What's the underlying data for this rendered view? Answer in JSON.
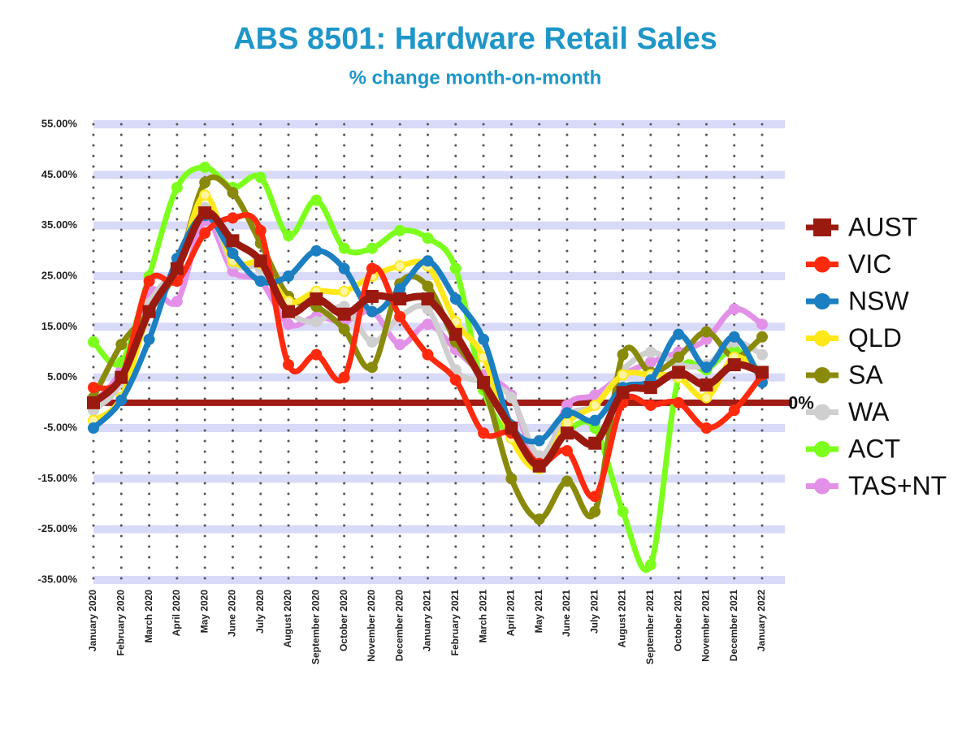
{
  "chart_data": {
    "type": "line",
    "title": "ABS 8501: Hardware Retail Sales",
    "subtitle": "% change month-on-month",
    "categories": [
      "January 2020",
      "February 2020",
      "March 2020",
      "April 2020",
      "May 2020",
      "June 2020",
      "July 2020",
      "August 2020",
      "September 2020",
      "October 2020",
      "November 2020",
      "December 2020",
      "January 2021",
      "February 2021",
      "March 2021",
      "April 2021",
      "May 2021",
      "June 2021",
      "July 2021",
      "August 2021",
      "September 2021",
      "October 2021",
      "November 2021",
      "December 2021",
      "January 2022"
    ],
    "ylim": [
      -35,
      55
    ],
    "yticks": [
      {
        "value": 55,
        "label": "55.00%"
      },
      {
        "value": 45,
        "label": "45.00%"
      },
      {
        "value": 35,
        "label": "35.00%"
      },
      {
        "value": 25,
        "label": "25.00%"
      },
      {
        "value": 15,
        "label": "15.00%"
      },
      {
        "value": 5,
        "label": "5.00%"
      },
      {
        "value": -5,
        "label": "-5.00%"
      },
      {
        "value": -15,
        "label": "-15.00%"
      },
      {
        "value": -25,
        "label": "-25.00%"
      },
      {
        "value": -35,
        "label": "-35.00%"
      }
    ],
    "grid": true,
    "reference_line": {
      "value": 0,
      "label": "0%",
      "color": "#a01c14"
    },
    "legend": "right",
    "series": [
      {
        "name": "AUST",
        "color": "#9b1a0f",
        "marker": "square",
        "values": [
          0,
          5,
          18,
          26.5,
          37.5,
          32,
          28,
          18,
          20.5,
          17.5,
          21,
          20.5,
          20.5,
          13.5,
          4,
          -5,
          -12.5,
          -6,
          -8,
          2,
          3,
          6,
          3.5,
          7.5,
          6
        ]
      },
      {
        "name": "VIC",
        "color": "#ff2a0e",
        "marker": "circle",
        "values": [
          3,
          5,
          24,
          24,
          33.5,
          36.5,
          34,
          7.5,
          9.5,
          5,
          26.5,
          17,
          9.5,
          4.5,
          -6,
          -6,
          -12,
          -9.5,
          -18.5,
          0,
          -0.5,
          0,
          -5,
          -1.5,
          5.5
        ]
      },
      {
        "name": "NSW",
        "color": "#1b7fc2",
        "marker": "circle",
        "values": [
          -5,
          0.5,
          12.5,
          28.5,
          37,
          29.5,
          24,
          25,
          30,
          26.5,
          18,
          22.5,
          28,
          20.5,
          12.5,
          -4.5,
          -7.5,
          -2,
          -3.5,
          3,
          4.5,
          13.5,
          7,
          13,
          4
        ]
      },
      {
        "name": "QLD",
        "color": "#ffe81a",
        "marker": "circle",
        "values": [
          -3.5,
          1,
          18,
          26.5,
          41,
          28,
          27.5,
          20,
          22,
          22,
          25,
          27,
          27,
          16,
          9,
          -7,
          -13,
          -4,
          -0.5,
          5.5,
          5.5,
          5,
          1,
          9,
          5.5
        ]
      },
      {
        "name": "SA",
        "color": "#8a8a0a",
        "marker": "circle",
        "values": [
          1,
          11.5,
          18,
          26.5,
          43.5,
          41.5,
          31.5,
          21,
          19,
          14.5,
          7,
          23.5,
          23,
          12,
          3.5,
          -15,
          -23,
          -15.5,
          -21.5,
          9.5,
          6,
          9,
          14,
          9,
          13
        ]
      },
      {
        "name": "WA",
        "color": "#cfcfcf",
        "marker": "circle",
        "values": [
          -1.5,
          4,
          19.5,
          27,
          38.5,
          27.5,
          26.5,
          18,
          16,
          19,
          12,
          17,
          18.5,
          6.5,
          4,
          1,
          -10.5,
          -2.5,
          -0.5,
          6.5,
          10,
          7.5,
          7.5,
          12,
          9.5
        ]
      },
      {
        "name": "ACT",
        "color": "#7cff1c",
        "marker": "circle",
        "values": [
          12,
          8,
          25,
          42.5,
          46.5,
          42.5,
          44.5,
          33,
          40,
          30.5,
          30.5,
          34,
          32.5,
          26.5,
          2.5,
          -7,
          -11,
          -5.5,
          -5,
          -21.5,
          -32,
          5,
          6.5,
          10.5,
          5.5
        ]
      },
      {
        "name": "TAS+NT",
        "color": "#e391e8",
        "marker": "circle",
        "values": [
          0,
          6.5,
          22,
          20,
          36,
          26,
          24,
          15.5,
          17,
          16,
          18,
          11.5,
          15.5,
          10.5,
          5.5,
          1.5,
          -12.5,
          -0.5,
          1.5,
          5.5,
          8,
          10,
          12.5,
          18.5,
          15.5
        ]
      }
    ]
  }
}
